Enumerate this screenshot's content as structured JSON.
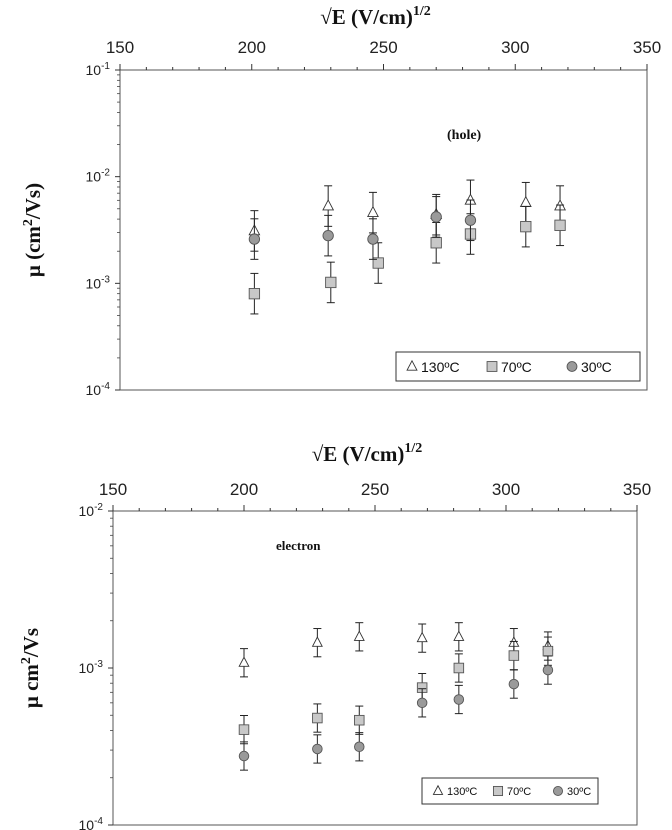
{
  "chart_data": [
    {
      "type": "scatter",
      "xlabel": "√E (V/cm)",
      "xlabel_sup": "1/2",
      "ylabel": "μ (cm",
      "ylabel_sup": "2",
      "ylabel_end": "/Vs)",
      "annotation": "(hole)",
      "xlim": [
        150,
        350
      ],
      "ylim": [
        0.0001,
        0.1
      ],
      "y_scale": "log",
      "x_axis_position": "top",
      "x_ticks": [
        "150",
        "200",
        "250",
        "300",
        "350"
      ],
      "y_ticks": [
        {
          "base": "10",
          "exp": "-4"
        },
        {
          "base": "10",
          "exp": "-3"
        },
        {
          "base": "10",
          "exp": "-2"
        },
        {
          "base": "10",
          "exp": "-1"
        }
      ],
      "legend_position": "bottom-right",
      "series": [
        {
          "name": "130ºC",
          "marker": "triangle",
          "color": "#ffffff",
          "x": [
            201,
            229,
            246,
            270,
            283,
            304,
            317
          ],
          "y": [
            0.0031,
            0.0053,
            0.0046,
            0.0044,
            0.006,
            0.0057,
            0.0053
          ]
        },
        {
          "name": "70ºC",
          "marker": "square",
          "color": "#c8c8c8",
          "x": [
            201,
            230,
            248,
            270,
            283,
            304,
            317
          ],
          "y": [
            0.0008,
            0.00102,
            0.00155,
            0.0024,
            0.0029,
            0.0034,
            0.0035
          ]
        },
        {
          "name": "30ºC",
          "marker": "circle",
          "color": "#9a9a9a",
          "x": [
            201,
            229,
            246,
            270,
            283
          ],
          "y": [
            0.0026,
            0.0028,
            0.0026,
            0.0042,
            0.0039
          ]
        }
      ]
    },
    {
      "type": "scatter",
      "xlabel": "√E (V/cm)",
      "xlabel_sup": "1/2",
      "ylabel": "μ cm",
      "ylabel_sup": "2",
      "ylabel_end": "/Vs",
      "annotation": "electron",
      "xlim": [
        150,
        350
      ],
      "ylim": [
        0.0001,
        0.01
      ],
      "y_scale": "log",
      "x_axis_position": "top",
      "x_ticks": [
        "150",
        "200",
        "250",
        "300",
        "350"
      ],
      "y_ticks": [
        {
          "base": "10",
          "exp": "-4"
        },
        {
          "base": "10",
          "exp": "-3"
        },
        {
          "base": "10",
          "exp": "-2"
        }
      ],
      "legend_position": "bottom-right",
      "series": [
        {
          "name": "130ºC",
          "marker": "triangle",
          "color": "#ffffff",
          "x": [
            200,
            228,
            244,
            268,
            282,
            303,
            316
          ],
          "y": [
            0.00108,
            0.00145,
            0.00158,
            0.00155,
            0.00158,
            0.00145,
            0.00138
          ]
        },
        {
          "name": "70ºC",
          "marker": "square",
          "color": "#c8c8c8",
          "x": [
            200,
            228,
            244,
            268,
            282,
            303,
            316
          ],
          "y": [
            0.000405,
            0.00048,
            0.000465,
            0.00075,
            0.001,
            0.0012,
            0.00128
          ]
        },
        {
          "name": "30ºC",
          "marker": "circle",
          "color": "#9a9a9a",
          "x": [
            200,
            228,
            244,
            268,
            282,
            303,
            316
          ],
          "y": [
            0.000275,
            0.000305,
            0.000315,
            0.0006,
            0.00063,
            0.00079,
            0.00097
          ]
        }
      ]
    }
  ]
}
